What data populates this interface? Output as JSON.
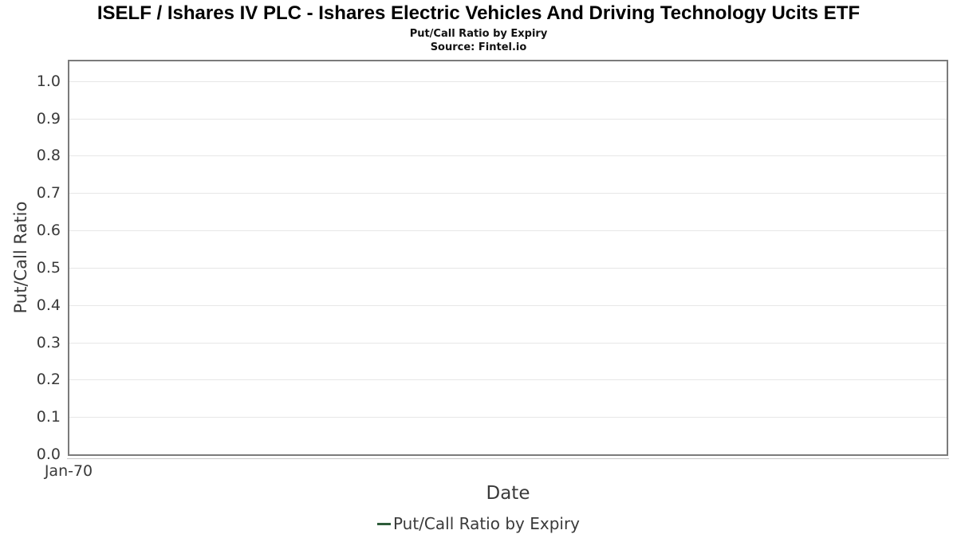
{
  "header": {
    "title": "ISELF / Ishares IV PLC - Ishares Electric Vehicles And Driving Technology Ucits ETF",
    "subtitle": "Put/Call Ratio by Expiry",
    "source": "Source: Fintel.io"
  },
  "chart_data": {
    "type": "line",
    "title": "Put/Call Ratio by Expiry",
    "xlabel": "Date",
    "ylabel": "Put/Call Ratio",
    "x_tick_labels": [
      "Jan-70"
    ],
    "y_ticks": [
      0.0,
      0.1,
      0.2,
      0.3,
      0.4,
      0.5,
      0.6,
      0.7,
      0.8,
      0.9,
      1.0
    ],
    "y_tick_labels": [
      "0.0",
      "0.1",
      "0.2",
      "0.3",
      "0.4",
      "0.5",
      "0.6",
      "0.7",
      "0.8",
      "0.9",
      "1.0"
    ],
    "ylim": [
      0.0,
      1.053
    ],
    "grid": "horizontal",
    "legend": {
      "position": "bottom-center",
      "entries": [
        {
          "label": "Put/Call Ratio by Expiry",
          "color": "#2d5c3a"
        }
      ]
    },
    "series": [
      {
        "name": "Put/Call Ratio by Expiry",
        "x": [],
        "values": [],
        "color": "#2d5c3a"
      }
    ],
    "colors": {
      "plot_border": "#7b7b7b",
      "gridline": "#e7e7e7",
      "axis_line": "#c9c9c9",
      "text": "#3a3a3a",
      "title_text": "#000000",
      "series_green": "#2d5c3a"
    }
  }
}
